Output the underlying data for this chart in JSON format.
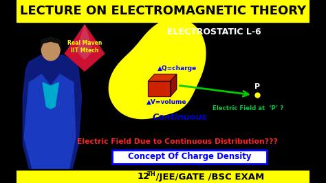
{
  "bg_color": "#000000",
  "top_banner_color": "#ffff00",
  "top_banner_text": "LECTURE ON ELECTROMAGNETIC THEORY",
  "top_banner_text_color": "#000000",
  "bottom_banner_color": "#ffff00",
  "bottom_banner_text_color": "#000000",
  "electrostatic_label": "ELECTROSTATIC L-6",
  "electrostatic_color": "#ffffff",
  "blob_color": "#ffff00",
  "arrow_color": "#00cc00",
  "point_color": "#ffff00",
  "point_label": "P",
  "q_label": "▲Q=charge",
  "v_label": "▲V=volume",
  "q_label_color": "#0000ff",
  "v_label_color": "#0000ff",
  "continuous_label": "Continuous",
  "continuous_color": "#0000cc",
  "ef_label": "Electric Field at  ‘P’ ?",
  "ef_label_color": "#00cc44",
  "red_text": "Electric Field Due to Continuous Distribution???",
  "red_text_color": "#ff2222",
  "blue_box_text": "Concept Of Charge Density",
  "blue_box_facecolor": "#ffffff",
  "blue_box_edgecolor": "#0000ff",
  "blue_box_text_color": "#0000ff",
  "real_maven_text": "Real Maven\nIIT Mtech",
  "real_maven_color": "#ffff00",
  "diamond_color": "#cc1133",
  "diamond_shine": "#cc3355",
  "box_front_color": "#cc2200",
  "box_top_color": "#dd3300",
  "box_right_color": "#991100",
  "person_jacket_color": "#1133aa",
  "p_label_color": "#ffffff"
}
